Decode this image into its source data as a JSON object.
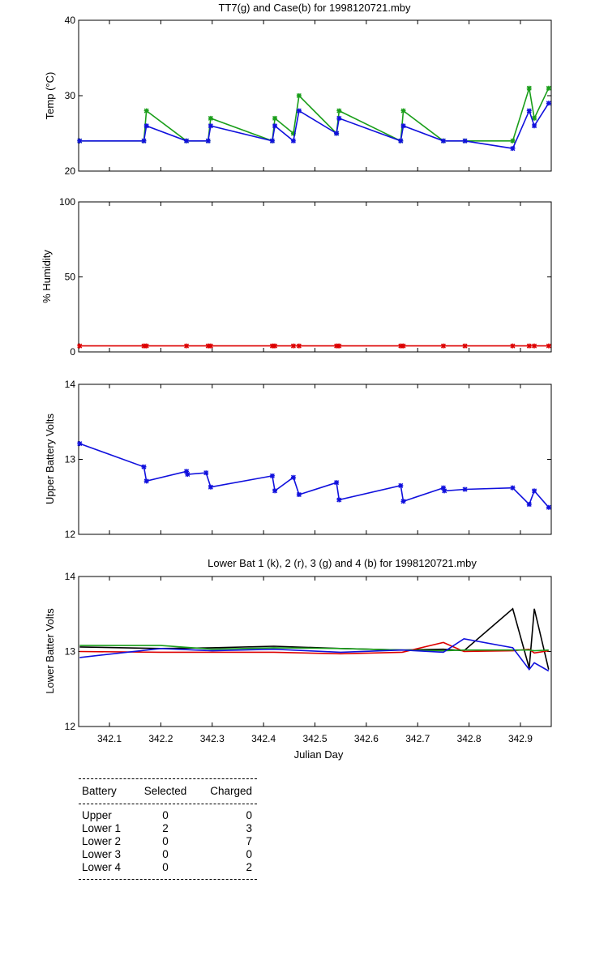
{
  "colors": {
    "black": "#000000",
    "red": "#dd0000",
    "green": "#1a9e1a",
    "blue": "#1010dd"
  },
  "x_axis": {
    "range": [
      342.04,
      342.96
    ],
    "ticks": [
      342.1,
      342.2,
      342.3,
      342.4,
      342.5,
      342.6,
      342.7,
      342.8,
      342.9
    ],
    "tick_labels": [
      "342.1",
      "342.2",
      "342.3",
      "342.4",
      "342.5",
      "342.6",
      "342.7",
      "342.8",
      "342.9"
    ],
    "label": "Julian Day"
  },
  "chart_data": [
    {
      "id": "temp",
      "type": "line",
      "title": "TT7(g) and Case(b) for 1998120721.mby",
      "ylabel": "Temp  (°C)",
      "ylim": [
        20,
        40
      ],
      "yticks": [
        20,
        30,
        40
      ],
      "ytick_labels": [
        "20",
        "30",
        "40"
      ],
      "series": [
        {
          "name": "TT7",
          "color": "green",
          "marker": "*",
          "x": [
            342.042,
            342.167,
            342.172,
            342.25,
            342.292,
            342.297,
            342.417,
            342.422,
            342.458,
            342.469,
            342.542,
            342.547,
            342.667,
            342.672,
            342.75,
            342.792,
            342.885,
            342.917,
            342.927,
            342.955
          ],
          "y": [
            24,
            24,
            28,
            24,
            24,
            27,
            24,
            27,
            25,
            30,
            25,
            28,
            24,
            28,
            24,
            24,
            24,
            31,
            27,
            31
          ]
        },
        {
          "name": "Case",
          "color": "blue",
          "marker": "*",
          "x": [
            342.042,
            342.167,
            342.172,
            342.25,
            342.292,
            342.297,
            342.417,
            342.422,
            342.458,
            342.469,
            342.542,
            342.547,
            342.667,
            342.672,
            342.75,
            342.792,
            342.885,
            342.917,
            342.927,
            342.955
          ],
          "y": [
            24,
            24,
            26,
            24,
            24,
            26,
            24,
            26,
            24,
            28,
            25,
            27,
            24,
            26,
            24,
            24,
            23,
            28,
            26,
            29
          ]
        }
      ]
    },
    {
      "id": "humidity",
      "type": "line",
      "title": "",
      "ylabel": "% Humidity",
      "ylim": [
        0,
        100
      ],
      "yticks": [
        0,
        50,
        100
      ],
      "ytick_labels": [
        "0",
        "50",
        "100"
      ],
      "series": [
        {
          "name": "Humidity",
          "color": "red",
          "marker": "*",
          "x": [
            342.042,
            342.167,
            342.172,
            342.25,
            342.292,
            342.297,
            342.417,
            342.422,
            342.458,
            342.469,
            342.542,
            342.547,
            342.667,
            342.672,
            342.75,
            342.792,
            342.885,
            342.917,
            342.927,
            342.955
          ],
          "y": [
            4,
            4,
            4,
            4,
            4,
            4,
            4,
            4,
            4,
            4,
            4,
            4,
            4,
            4,
            4,
            4,
            4,
            4,
            4,
            4
          ]
        }
      ]
    },
    {
      "id": "upper",
      "type": "line",
      "title": "",
      "ylabel": "Upper Battery Volts",
      "ylim": [
        12,
        14
      ],
      "yticks": [
        12,
        13,
        14
      ],
      "ytick_labels": [
        "12",
        "13",
        "14"
      ],
      "series": [
        {
          "name": "Upper",
          "color": "blue",
          "marker": "*",
          "x": [
            342.042,
            342.167,
            342.172,
            342.25,
            342.252,
            342.288,
            342.297,
            342.417,
            342.422,
            342.458,
            342.469,
            342.542,
            342.547,
            342.667,
            342.672,
            342.75,
            342.752,
            342.792,
            342.885,
            342.917,
            342.927,
            342.955
          ],
          "y": [
            13.21,
            12.9,
            12.71,
            12.84,
            12.8,
            12.82,
            12.63,
            12.78,
            12.58,
            12.76,
            12.53,
            12.69,
            12.46,
            12.65,
            12.44,
            12.62,
            12.58,
            12.6,
            12.62,
            12.4,
            12.58,
            12.36
          ]
        }
      ]
    },
    {
      "id": "lower",
      "type": "line",
      "title": "Lower Bat 1 (k), 2 (r), 3 (g) and 4 (b) for 1998120721.mby",
      "ylabel": "Lower Batter Volts",
      "ylim": [
        12,
        14
      ],
      "yticks": [
        12,
        13,
        14
      ],
      "ytick_labels": [
        "12",
        "13",
        "14"
      ],
      "series": [
        {
          "name": "Lower 1",
          "color": "black",
          "x": [
            342.042,
            342.2,
            342.3,
            342.42,
            342.55,
            342.67,
            342.75,
            342.79,
            342.885,
            342.917,
            342.927,
            342.955
          ],
          "y": [
            13.06,
            13.04,
            13.05,
            13.07,
            13.04,
            13.02,
            13.03,
            13.01,
            13.57,
            12.78,
            13.57,
            12.76
          ]
        },
        {
          "name": "Lower 2",
          "color": "red",
          "x": [
            342.042,
            342.2,
            342.3,
            342.42,
            342.55,
            342.67,
            342.75,
            342.79,
            342.885,
            342.917,
            342.927,
            342.955
          ],
          "y": [
            13.0,
            12.99,
            12.99,
            12.99,
            12.97,
            12.99,
            13.12,
            13.0,
            13.01,
            13.03,
            12.98,
            13.01
          ]
        },
        {
          "name": "Lower 3",
          "color": "green",
          "x": [
            342.042,
            342.2,
            342.3,
            342.42,
            342.55,
            342.67,
            342.75,
            342.79,
            342.885,
            342.917,
            342.927,
            342.955
          ],
          "y": [
            13.08,
            13.08,
            13.03,
            13.05,
            13.04,
            13.02,
            13.01,
            13.02,
            13.02,
            13.02,
            13.01,
            13.02
          ]
        },
        {
          "name": "Lower 4",
          "color": "blue",
          "x": [
            342.042,
            342.2,
            342.3,
            342.42,
            342.55,
            342.67,
            342.75,
            342.79,
            342.885,
            342.917,
            342.927,
            342.955
          ],
          "y": [
            12.92,
            13.04,
            13.01,
            13.03,
            12.99,
            13.02,
            12.99,
            13.17,
            13.05,
            12.76,
            12.85,
            12.74
          ]
        }
      ]
    }
  ],
  "battery_table": {
    "headers": [
      "Battery",
      "Selected",
      "Charged"
    ],
    "rows": [
      [
        "Upper",
        "0",
        "0"
      ],
      [
        "Lower 1",
        "2",
        "3"
      ],
      [
        "Lower 2",
        "0",
        "7"
      ],
      [
        "Lower 3",
        "0",
        "0"
      ],
      [
        "Lower 4",
        "0",
        "2"
      ]
    ]
  }
}
